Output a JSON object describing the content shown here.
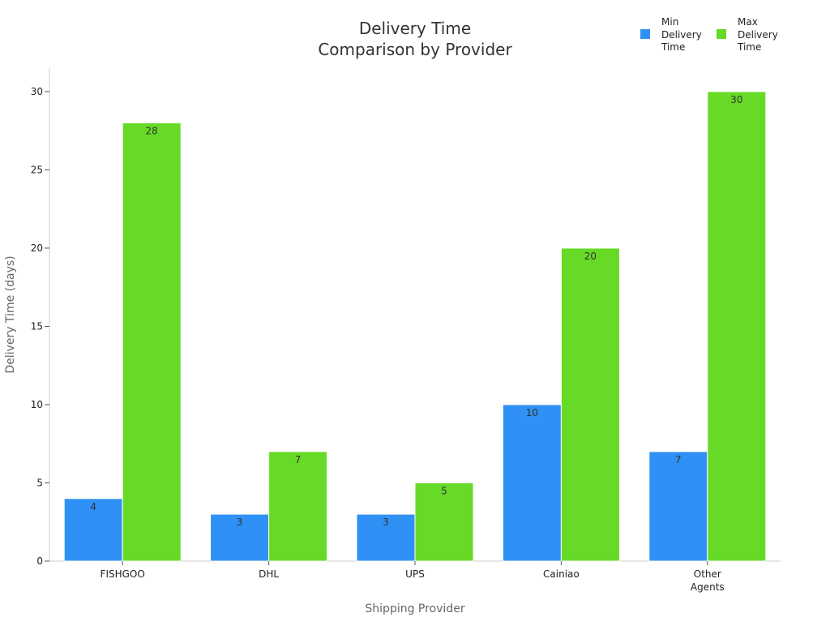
{
  "chart_data": {
    "type": "bar",
    "title_lines": [
      "Delivery Time",
      "Comparison by Provider"
    ],
    "xlabel": "Shipping Provider",
    "ylabel": "Delivery Time (days)",
    "categories": [
      [
        "FISHGOO"
      ],
      [
        "DHL"
      ],
      [
        "UPS"
      ],
      [
        "Cainiao"
      ],
      [
        "Other",
        "Agents"
      ]
    ],
    "series": [
      {
        "name_lines": [
          "Min",
          "Delivery",
          "Time"
        ],
        "color": "#2f91f5",
        "values": [
          4,
          3,
          3,
          10,
          7
        ]
      },
      {
        "name_lines": [
          "Max",
          "Delivery",
          "Time"
        ],
        "color": "#66da26",
        "values": [
          28,
          7,
          5,
          20,
          30
        ]
      }
    ],
    "ylim": [
      0,
      31.5
    ],
    "yticks": [
      0,
      5,
      10,
      15,
      20,
      25,
      30
    ],
    "grid": false,
    "legend_position": "top-right"
  }
}
